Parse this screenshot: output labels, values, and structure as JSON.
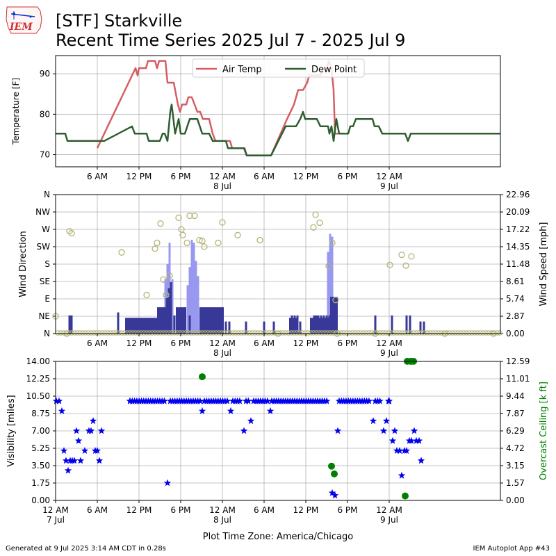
{
  "header": {
    "logo_text": "IEM",
    "title": "[STF] Starkville",
    "subtitle": "Recent Time Series 2025 Jul 7 - 2025 Jul 9"
  },
  "footer": {
    "generated": "Generated at 9 Jul 2025 3:14 AM CDT in 0.28s",
    "app": "IEM Autoplot App #43"
  },
  "colors": {
    "air_temp": "#d55e63",
    "dew_point": "#2e5e30",
    "wind_gust": "#9898f0",
    "wind_speed": "#383898",
    "wind_dir": "#b4b47a",
    "visibility": "#0000ee",
    "ceiling": "#008000"
  },
  "chart_data": [
    {
      "type": "line",
      "ylabel": "Temperature [F]",
      "ylim": [
        67,
        94.5
      ],
      "yticks": [
        70,
        80,
        90
      ],
      "xlim_hours": [
        0,
        64
      ],
      "xticks": [
        {
          "h": 6,
          "label": "6 AM"
        },
        {
          "h": 12,
          "label": "12 PM"
        },
        {
          "h": 18,
          "label": "6 PM"
        },
        {
          "h": 24,
          "label": "12 AM",
          "sub": "8 Jul"
        },
        {
          "h": 30,
          "label": "6 AM"
        },
        {
          "h": 36,
          "label": "12 PM"
        },
        {
          "h": 42,
          "label": "6 PM"
        },
        {
          "h": 48,
          "label": "12 AM",
          "sub": "9 Jul"
        }
      ],
      "grid": true,
      "legend": "top-center",
      "series": [
        {
          "name": "Air Temp",
          "points": [
            [
              6,
              71.6
            ],
            [
              11,
              89.6
            ],
            [
              11.5,
              91.4
            ],
            [
              11.8,
              89.6
            ],
            [
              12,
              91.4
            ],
            [
              13,
              91.4
            ],
            [
              13.3,
              93.2
            ],
            [
              14.3,
              93.2
            ],
            [
              14.6,
              91.4
            ],
            [
              14.9,
              93.2
            ],
            [
              15.8,
              93.2
            ],
            [
              16.1,
              87.8
            ],
            [
              17,
              87.8
            ],
            [
              17.4,
              84.2
            ],
            [
              17.6,
              82.4
            ],
            [
              17.9,
              80.6
            ],
            [
              18.2,
              82.4
            ],
            [
              18.8,
              82.4
            ],
            [
              19.1,
              84.2
            ],
            [
              19.6,
              84.2
            ],
            [
              20.4,
              80.6
            ],
            [
              20.8,
              80.6
            ],
            [
              21.2,
              78.8
            ],
            [
              22.1,
              78.8
            ],
            [
              22.6,
              75.2
            ],
            [
              23,
              73.4
            ],
            [
              25.1,
              73.4
            ],
            [
              25.4,
              71.6
            ],
            [
              27.2,
              71.6
            ],
            [
              27.5,
              69.8
            ],
            [
              31,
              69.8
            ],
            [
              33.3,
              78.8
            ],
            [
              33.8,
              80.6
            ],
            [
              34.3,
              82.4
            ],
            [
              34.9,
              86
            ],
            [
              35.6,
              86
            ],
            [
              36.2,
              87.8
            ],
            [
              36.5,
              89.6
            ],
            [
              38.1,
              89.6
            ],
            [
              38.5,
              91.4
            ],
            [
              39,
              91.4
            ],
            [
              39.3,
              93.2
            ],
            [
              39.7,
              91.4
            ],
            [
              40,
              86
            ],
            [
              40.2,
              75.2
            ],
            [
              41,
              75.2
            ]
          ]
        },
        {
          "name": "Dew Point",
          "points": [
            [
              0,
              75.2
            ],
            [
              1.4,
              75.2
            ],
            [
              1.7,
              73.4
            ],
            [
              7,
              73.4
            ],
            [
              11,
              77
            ],
            [
              11.4,
              75.2
            ],
            [
              13.1,
              75.2
            ],
            [
              13.4,
              73.4
            ],
            [
              15,
              73.4
            ],
            [
              15.4,
              75.2
            ],
            [
              15.7,
              75.2
            ],
            [
              16.1,
              73.4
            ],
            [
              16.5,
              80.6
            ],
            [
              16.7,
              82.4
            ],
            [
              17.2,
              75.2
            ],
            [
              17.7,
              78.8
            ],
            [
              18,
              75.2
            ],
            [
              18.6,
              75.2
            ],
            [
              19.3,
              78.8
            ],
            [
              20.4,
              78.8
            ],
            [
              21.1,
              75.2
            ],
            [
              22.1,
              75.2
            ],
            [
              22.6,
              73.4
            ],
            [
              24.5,
              73.4
            ],
            [
              24.8,
              71.6
            ],
            [
              27.1,
              71.6
            ],
            [
              27.5,
              69.8
            ],
            [
              31,
              69.8
            ],
            [
              33.1,
              77
            ],
            [
              34.6,
              77
            ],
            [
              35.2,
              78.8
            ],
            [
              35.6,
              80.6
            ],
            [
              35.9,
              78.8
            ],
            [
              37.6,
              78.8
            ],
            [
              38.1,
              77
            ],
            [
              39.2,
              77
            ],
            [
              39.4,
              75.2
            ],
            [
              39.7,
              77
            ],
            [
              40,
              73.4
            ],
            [
              40.4,
              78.8
            ],
            [
              40.8,
              75.2
            ],
            [
              42.1,
              75.2
            ],
            [
              42.4,
              77
            ],
            [
              42.8,
              77
            ],
            [
              43.2,
              78.8
            ],
            [
              45.6,
              78.8
            ],
            [
              45.9,
              77
            ],
            [
              46.5,
              77
            ],
            [
              47,
              75.2
            ],
            [
              50.3,
              75.2
            ],
            [
              50.7,
              73.4
            ],
            [
              51.1,
              75.2
            ],
            [
              64,
              75.2
            ]
          ]
        }
      ]
    },
    {
      "type": "bar",
      "ylabel": "Wind Direction",
      "y2label": "Wind Speed [mph]",
      "ylim": [
        0,
        360
      ],
      "yticks": [
        "N",
        "NE",
        "E",
        "SE",
        "S",
        "SW",
        "W",
        "NW",
        "N"
      ],
      "y2lim": [
        0,
        22.96
      ],
      "y2ticks": [
        "0.00",
        "2.87",
        "5.74",
        "8.61",
        "11.48",
        "14.35",
        "17.22",
        "20.09",
        "22.96"
      ],
      "xlim_hours": [
        0,
        64
      ],
      "grid": true,
      "wind_speed": [
        [
          2,
          3
        ],
        [
          2.3,
          3
        ],
        [
          9,
          3.5
        ],
        [
          14.8,
          3
        ],
        [
          16,
          6
        ],
        [
          16.3,
          7.5
        ],
        [
          16.6,
          8.5
        ],
        [
          17.1,
          3
        ],
        [
          17.6,
          3
        ],
        [
          18,
          2
        ],
        [
          18.3,
          3.5
        ],
        [
          19.3,
          3
        ],
        [
          21,
          3
        ],
        [
          21.3,
          3
        ],
        [
          21.6,
          3
        ],
        [
          22,
          3
        ],
        [
          22.3,
          3
        ],
        [
          22.7,
          3
        ],
        [
          23.1,
          3
        ],
        [
          24.5,
          2
        ],
        [
          25,
          2
        ],
        [
          27.4,
          2
        ],
        [
          30,
          2
        ],
        [
          31.4,
          2
        ],
        [
          34,
          3
        ],
        [
          34.4,
          3
        ],
        [
          34.8,
          3
        ],
        [
          35.2,
          2
        ],
        [
          37.2,
          3
        ],
        [
          37.5,
          3
        ],
        [
          37.8,
          3
        ],
        [
          38.2,
          3
        ],
        [
          38.6,
          3
        ],
        [
          39,
          3
        ],
        [
          39.4,
          3
        ],
        [
          39.6,
          3
        ],
        [
          40.2,
          3
        ],
        [
          46,
          3
        ],
        [
          48.4,
          3
        ],
        [
          50.5,
          3
        ],
        [
          51,
          3
        ],
        [
          52.5,
          2
        ],
        [
          53,
          2
        ]
      ],
      "wind_gust": [
        [
          15.8,
          9
        ],
        [
          16.1,
          11.5
        ],
        [
          16.4,
          15
        ],
        [
          16.8,
          9
        ],
        [
          19,
          8
        ],
        [
          19.3,
          11
        ],
        [
          19.6,
          15.5
        ],
        [
          19.9,
          15
        ],
        [
          20.2,
          12
        ],
        [
          20.5,
          9.5
        ],
        [
          39.2,
          13.5
        ],
        [
          39.5,
          16.5
        ],
        [
          39.8,
          16
        ]
      ],
      "bars": [
        [
          0,
          0
        ],
        [
          1.9,
          2
        ],
        [
          2.2,
          4
        ],
        [
          2.5,
          2
        ],
        [
          10,
          3
        ],
        [
          14.6,
          3
        ],
        [
          16,
          5
        ],
        [
          16.5,
          5
        ],
        [
          17.3,
          3
        ],
        [
          18,
          2
        ],
        [
          19.1,
          5
        ],
        [
          20.7,
          5
        ],
        [
          25,
          2
        ],
        [
          28,
          2
        ],
        [
          32.5,
          1
        ],
        [
          33.6,
          4
        ],
        [
          36.6,
          4
        ],
        [
          37.9,
          4
        ],
        [
          38.4,
          4
        ],
        [
          38.8,
          4
        ],
        [
          39.1,
          4
        ],
        [
          39.5,
          10
        ],
        [
          39.8,
          11
        ],
        [
          40.2,
          7
        ],
        [
          42.8,
          1
        ],
        [
          49.4,
          4
        ],
        [
          51.2,
          4
        ],
        [
          52.5,
          2
        ],
        [
          53,
          2
        ]
      ],
      "wind_dir_deg": [
        [
          0,
          45
        ],
        [
          1.6,
          0
        ],
        [
          2,
          265
        ],
        [
          2.3,
          260
        ],
        [
          9.5,
          210
        ],
        [
          13.1,
          100
        ],
        [
          14.3,
          220
        ],
        [
          14.6,
          235
        ],
        [
          15.1,
          285
        ],
        [
          15.5,
          140
        ],
        [
          15.9,
          100
        ],
        [
          16.4,
          150
        ],
        [
          17.7,
          300
        ],
        [
          18.1,
          270
        ],
        [
          18.3,
          255
        ],
        [
          18.9,
          235
        ],
        [
          19.3,
          305
        ],
        [
          20,
          305
        ],
        [
          20.7,
          242
        ],
        [
          21.1,
          240
        ],
        [
          21.4,
          225
        ],
        [
          23.4,
          235
        ],
        [
          24,
          288
        ],
        [
          26.2,
          255
        ],
        [
          29.4,
          242
        ],
        [
          32,
          0
        ],
        [
          37.1,
          275
        ],
        [
          37.4,
          308
        ],
        [
          38,
          287
        ],
        [
          39.3,
          175
        ],
        [
          39.8,
          235
        ],
        [
          40.3,
          87
        ],
        [
          40.5,
          0
        ],
        [
          46,
          0
        ],
        [
          48.1,
          178
        ],
        [
          49.8,
          204
        ],
        [
          50.4,
          176
        ],
        [
          51.2,
          200
        ],
        [
          56,
          0
        ],
        [
          63,
          0
        ]
      ]
    },
    {
      "type": "scatter",
      "ylabel": "Visibility [miles]",
      "y2label": "Overcast Ceiling [k ft]",
      "ylim": [
        0,
        14
      ],
      "yticks": [
        "0.00",
        "1.75",
        "3.50",
        "5.25",
        "7.00",
        "8.75",
        "10.50",
        "12.25",
        "14.00"
      ],
      "y2lim": [
        0,
        12.59
      ],
      "y2ticks": [
        "0.00",
        "1.57",
        "3.15",
        "4.72",
        "6.29",
        "7.87",
        "9.44",
        "11.01",
        "12.59"
      ],
      "xlim_hours": [
        0,
        64
      ],
      "xticks": [
        {
          "h": 0,
          "label": "12 AM",
          "sub": "7 Jul"
        },
        {
          "h": 6,
          "label": "6 AM"
        },
        {
          "h": 12,
          "label": "12 PM"
        },
        {
          "h": 18,
          "label": "6 PM"
        },
        {
          "h": 24,
          "label": "12 AM",
          "sub": "8 Jul"
        },
        {
          "h": 30,
          "label": "6 AM"
        },
        {
          "h": 36,
          "label": "12 PM"
        },
        {
          "h": 42,
          "label": "6 PM"
        },
        {
          "h": 48,
          "label": "12 AM",
          "sub": "9 Jul"
        }
      ],
      "xlabel": "Plot Time Zone: America/Chicago",
      "grid": true,
      "visibility": [
        [
          0.1,
          10
        ],
        [
          0.5,
          10
        ],
        [
          0.9,
          9
        ],
        [
          1.2,
          5
        ],
        [
          1.5,
          4
        ],
        [
          1.8,
          3
        ],
        [
          2.1,
          4
        ],
        [
          2.4,
          4
        ],
        [
          2.7,
          4
        ],
        [
          3,
          7
        ],
        [
          3.3,
          6
        ],
        [
          3.6,
          4
        ],
        [
          4.2,
          5
        ],
        [
          4.8,
          7
        ],
        [
          5.1,
          7
        ],
        [
          5.4,
          8
        ],
        [
          5.7,
          5
        ],
        [
          6,
          5
        ],
        [
          6.3,
          4
        ],
        [
          6.6,
          7
        ],
        [
          10.7,
          10
        ],
        [
          16.1,
          1.75
        ],
        [
          21.1,
          9
        ],
        [
          25.2,
          9
        ],
        [
          27.1,
          7
        ],
        [
          28.1,
          8
        ],
        [
          30.9,
          9
        ],
        [
          39.8,
          0.75
        ],
        [
          40.2,
          0.5
        ],
        [
          40.6,
          7
        ],
        [
          45.7,
          8
        ],
        [
          47.2,
          7
        ],
        [
          47.6,
          8
        ],
        [
          48,
          10
        ],
        [
          48.5,
          6
        ],
        [
          48.8,
          7
        ],
        [
          49.1,
          5
        ],
        [
          49.5,
          5
        ],
        [
          49.8,
          2.5
        ],
        [
          50.2,
          5
        ],
        [
          50.5,
          5
        ],
        [
          50.9,
          6
        ],
        [
          51.2,
          6
        ],
        [
          51.6,
          7
        ],
        [
          51.9,
          6
        ],
        [
          52.3,
          6
        ],
        [
          52.6,
          4
        ]
      ],
      "visibility_clear_runs": [
        [
          10.7,
          15.8
        ],
        [
          16.5,
          20.8
        ],
        [
          21.4,
          24.9
        ],
        [
          25.5,
          26.8
        ],
        [
          27.4,
          27.8
        ],
        [
          28.5,
          30.7
        ],
        [
          31.1,
          39.3
        ],
        [
          40.8,
          45.4
        ],
        [
          46,
          46.9
        ],
        [
          47.9,
          48.1
        ]
      ],
      "ceiling": [
        [
          21.1,
          11.2
        ],
        [
          39.7,
          3.1
        ],
        [
          40.1,
          2.4
        ],
        [
          50.3,
          0.4
        ],
        [
          50.6,
          12.6
        ],
        [
          51.1,
          12.6
        ],
        [
          51.5,
          12.6
        ]
      ]
    }
  ]
}
